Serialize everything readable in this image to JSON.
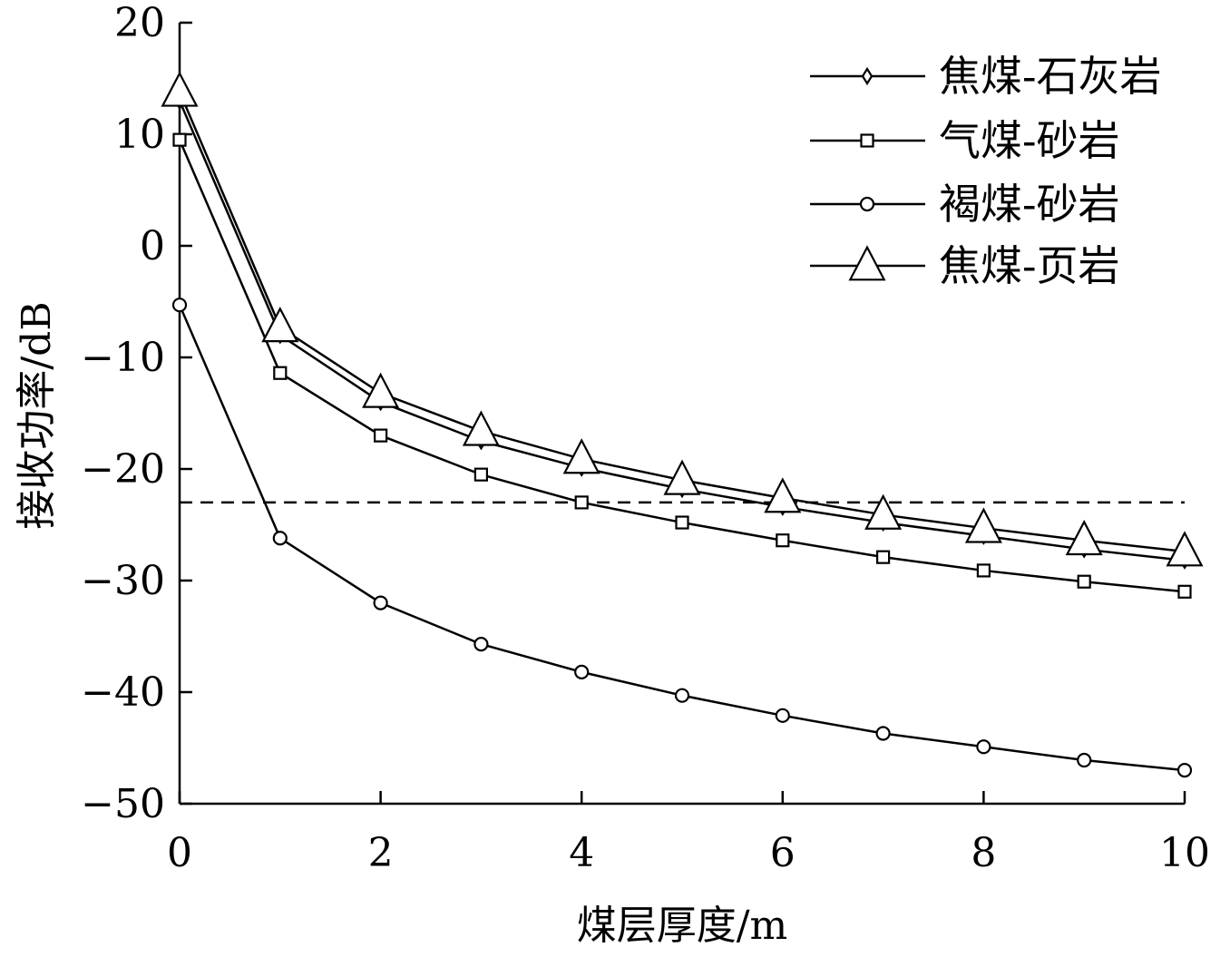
{
  "chart_data": {
    "type": "line",
    "title": "",
    "xlabel": "煤层厚度/m",
    "ylabel": "接收功率/dB",
    "xlim": [
      0,
      10
    ],
    "ylim": [
      -50,
      20
    ],
    "xticks": [
      0,
      2,
      4,
      6,
      8,
      10
    ],
    "yticks": [
      20,
      10,
      0,
      -10,
      -20,
      -30,
      -40,
      -50
    ],
    "x": [
      0,
      1,
      2,
      3,
      4,
      5,
      6,
      7,
      8,
      9,
      10
    ],
    "grid": false,
    "legend_position": "top-right",
    "reference_line": {
      "y": -23,
      "style": "dashed"
    },
    "series": [
      {
        "name": "焦煤-石灰岩",
        "marker": "diamond",
        "values": [
          13,
          -8,
          -14,
          -17.5,
          -19.9,
          -21.8,
          -23.4,
          -24.8,
          -26,
          -27.2,
          -28.2
        ]
      },
      {
        "name": "气煤-砂岩",
        "marker": "square",
        "values": [
          9.5,
          -11.4,
          -17,
          -20.5,
          -23,
          -24.8,
          -26.4,
          -27.9,
          -29.1,
          -30.1,
          -31
        ]
      },
      {
        "name": "褐煤-砂岩",
        "marker": "circle",
        "values": [
          -5.3,
          -26.2,
          -32,
          -35.7,
          -38.2,
          -40.3,
          -42.1,
          -43.7,
          -44.9,
          -46.1,
          -47
        ]
      },
      {
        "name": "焦煤-页岩",
        "marker": "triangle",
        "values": [
          13.8,
          -7.3,
          -13.2,
          -16.6,
          -19.1,
          -21,
          -22.6,
          -24.1,
          -25.3,
          -26.4,
          -27.4
        ]
      }
    ]
  }
}
